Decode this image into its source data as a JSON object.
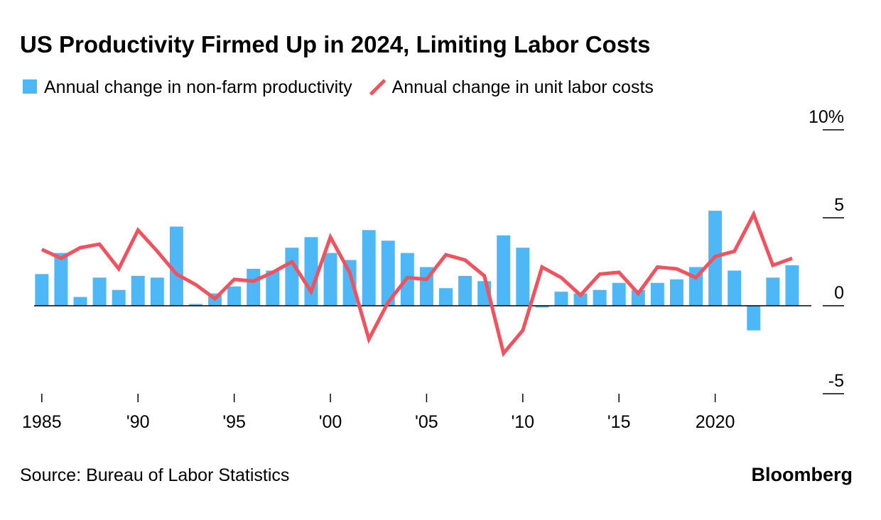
{
  "chart_data": {
    "type": "bar",
    "title": "US Productivity Firmed Up in 2024, Limiting Labor Costs",
    "source": "Source: Bureau of Labor Statistics",
    "logo": "Bloomberg",
    "x": [
      1985,
      1986,
      1987,
      1988,
      1989,
      1990,
      1991,
      1992,
      1993,
      1994,
      1995,
      1996,
      1997,
      1998,
      1999,
      2000,
      2001,
      2002,
      2003,
      2004,
      2005,
      2006,
      2007,
      2008,
      2009,
      2010,
      2011,
      2012,
      2013,
      2014,
      2015,
      2016,
      2017,
      2018,
      2019,
      2020,
      2021,
      2022,
      2023,
      2024
    ],
    "series": [
      {
        "name": "Annual change in non-farm productivity",
        "type": "bar",
        "color": "#4db8f5",
        "values": [
          1.8,
          3.0,
          0.5,
          1.6,
          0.9,
          1.7,
          1.6,
          4.5,
          0.1,
          0.7,
          1.1,
          2.1,
          2.0,
          3.3,
          3.9,
          3.0,
          2.6,
          4.3,
          3.7,
          3.0,
          2.2,
          1.0,
          1.7,
          1.4,
          4.0,
          3.3,
          -0.1,
          0.8,
          0.7,
          0.9,
          1.3,
          0.9,
          1.3,
          1.5,
          2.2,
          5.4,
          2.0,
          -1.4,
          1.6,
          2.3
        ]
      },
      {
        "name": "Annual change in unit labor costs",
        "type": "line",
        "color": "#f2515e",
        "values": [
          3.2,
          2.7,
          3.3,
          3.5,
          2.1,
          4.3,
          3.1,
          1.8,
          1.2,
          0.4,
          1.5,
          1.4,
          1.9,
          2.5,
          0.8,
          3.9,
          1.9,
          -1.9,
          0.2,
          1.6,
          1.5,
          2.9,
          2.6,
          1.7,
          -2.7,
          -1.4,
          2.2,
          1.6,
          0.6,
          1.8,
          1.9,
          0.7,
          2.2,
          2.1,
          1.6,
          2.8,
          3.1,
          5.2,
          2.3,
          2.7
        ]
      }
    ],
    "xlim": [
      1984.6,
      2025
    ],
    "xticks": [
      1985,
      {
        "value": 1990,
        "label": "'90"
      },
      {
        "value": 1995,
        "label": "'95"
      },
      {
        "value": 2000,
        "label": "'00"
      },
      {
        "value": 2005,
        "label": "'05"
      },
      {
        "value": 2010,
        "label": "'10"
      },
      {
        "value": 2015,
        "label": "'15"
      },
      2020
    ],
    "ylim": [
      -5,
      10
    ],
    "yticks": [
      -5,
      0,
      5,
      {
        "value": 10,
        "label": "10%"
      }
    ],
    "legend": "top-left"
  }
}
